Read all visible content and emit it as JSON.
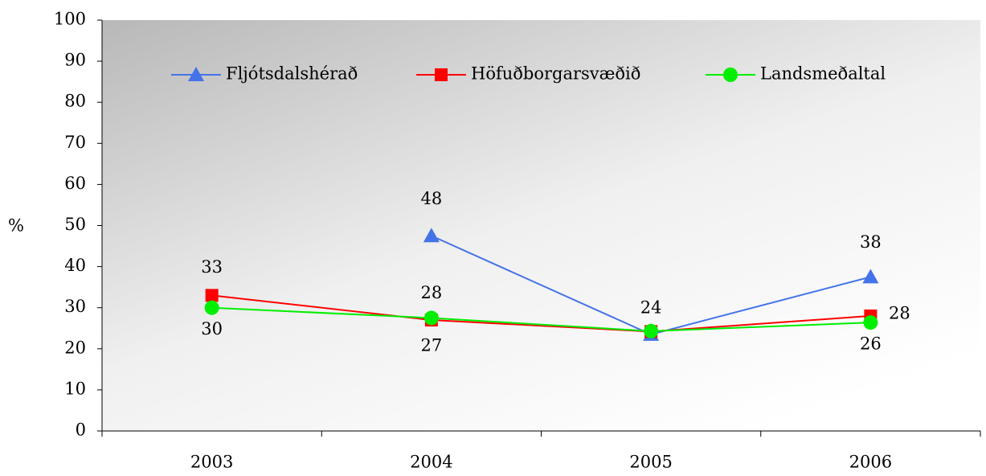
{
  "chart_data": {
    "type": "line",
    "y_label": "%",
    "categories": [
      "2003",
      "2004",
      "2005",
      "2006"
    ],
    "ylim": [
      0,
      100
    ],
    "yticks": [
      0,
      10,
      20,
      30,
      40,
      50,
      60,
      70,
      80,
      90,
      100
    ],
    "legend": "top",
    "series": [
      {
        "name": "Fljótsdalshérað",
        "color": "#4472e8",
        "marker": "triangle",
        "values": [
          null,
          47.5,
          23.5,
          37.5
        ],
        "value_labels": [
          null,
          "48",
          null,
          "38"
        ]
      },
      {
        "name": "Höfuðborgarsvæðið",
        "color": "#ff0000",
        "marker": "square",
        "values": [
          33,
          27,
          24.2,
          28
        ],
        "value_labels": [
          "33",
          "27",
          null,
          "28"
        ]
      },
      {
        "name": "Landsmeðaltal",
        "color": "#00ee00",
        "marker": "circle",
        "values": [
          30,
          27.5,
          24.3,
          26.4
        ],
        "value_labels": [
          "30",
          "28",
          "24",
          "26"
        ]
      }
    ]
  }
}
